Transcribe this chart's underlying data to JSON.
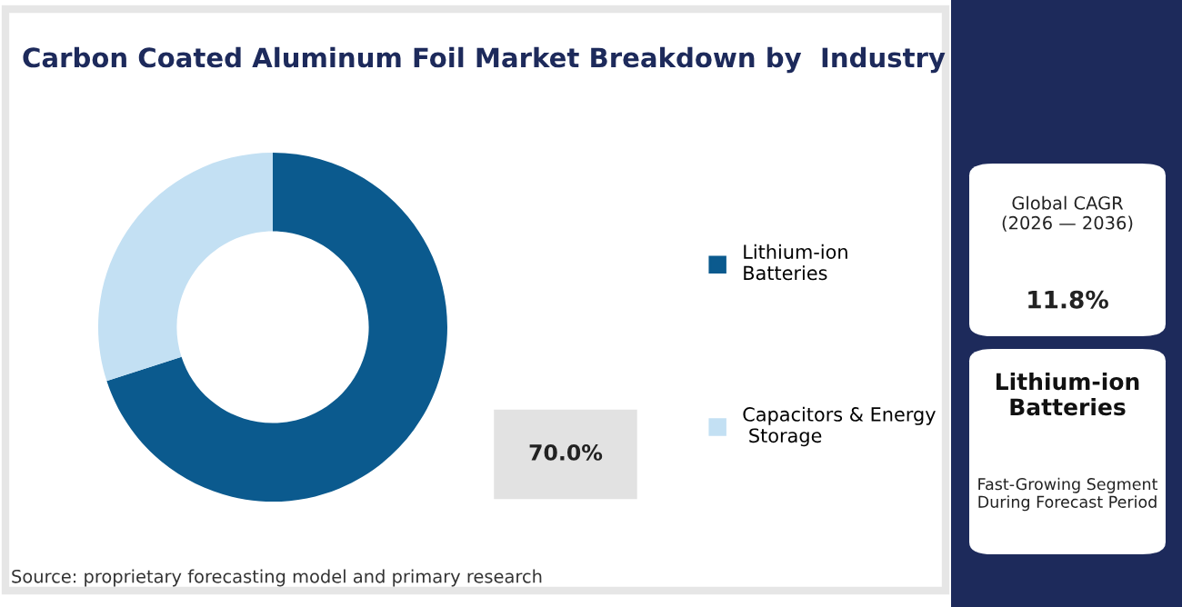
{
  "chart_data": {
    "type": "donut",
    "title": "Carbon Coated Aluminum Foil Market Breakdown by  Industry",
    "categories": [
      "Lithium-ion Batteries",
      "Capacitors & Energy Storage"
    ],
    "values": [
      70,
      30
    ],
    "colors": [
      "#0b5a8e",
      "#c3e0f3"
    ],
    "value_labels": [
      "70.0%",
      null
    ],
    "legend": "right",
    "annotations": [
      "Source: proprietary forecasting model and primary research",
      "Global CAGR\n(2026 — 2036)",
      "11.8%",
      "Lithium-ion\nBatteries",
      "Fast-Growing Segment\nDuring Forecast Period"
    ]
  }
}
